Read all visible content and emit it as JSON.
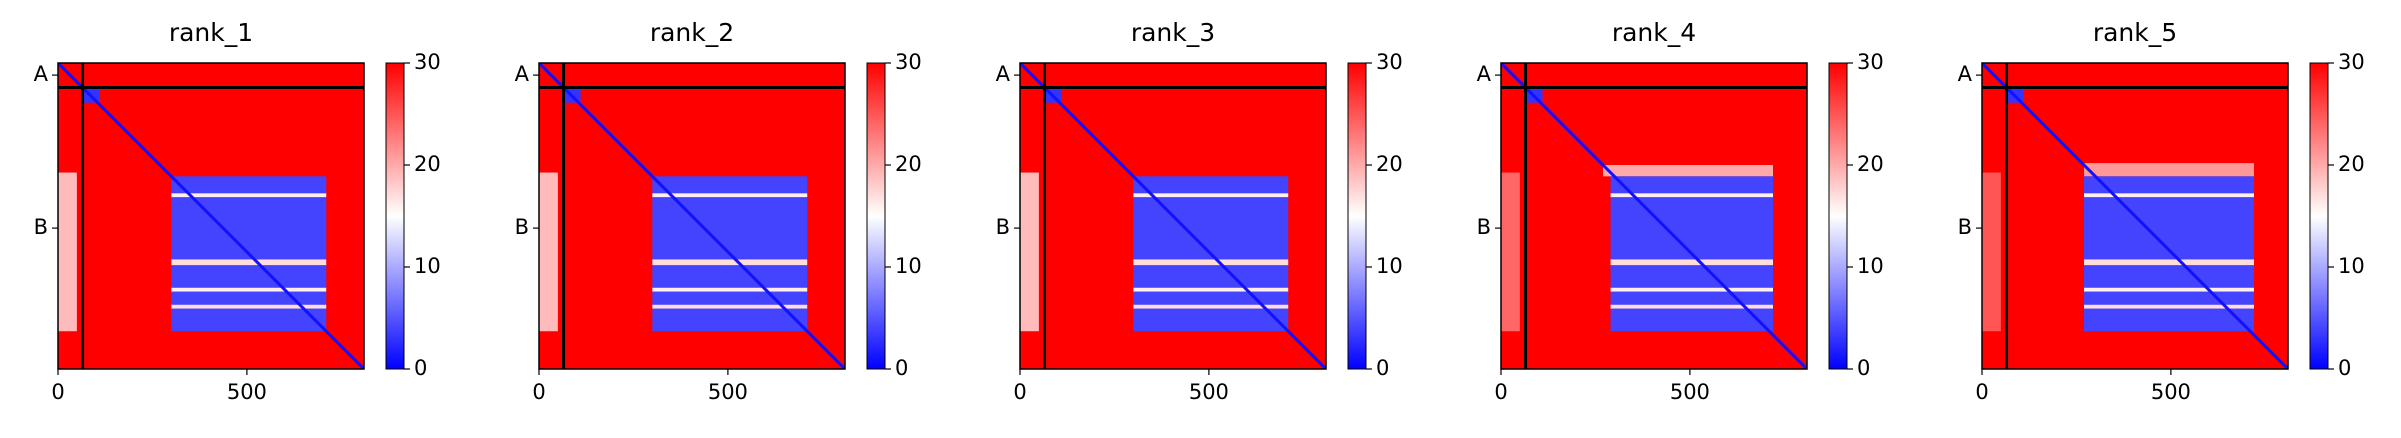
{
  "chart_data": [
    {
      "type": "heatmap",
      "title": "rank_1",
      "xlim": [
        0,
        810
      ],
      "ylim": [
        810,
        0
      ],
      "xticks": [
        0,
        500
      ],
      "yticks": [
        {
          "value": 32,
          "label": "A"
        },
        {
          "value": 437,
          "label": "B"
        }
      ],
      "clim": [
        0,
        30
      ],
      "cticks": [
        0,
        10,
        20,
        30
      ],
      "background": 30,
      "diagonal": 1,
      "chain_boundaries": [
        65
      ],
      "blocks": [
        {
          "x": [
            0,
            50
          ],
          "y": [
            290,
            710
          ],
          "value": 19
        },
        {
          "x": [
            65,
            110
          ],
          "y": [
            65,
            105
          ],
          "value": 3
        },
        {
          "x": [
            300,
            710
          ],
          "y": [
            300,
            710
          ],
          "value": 4
        },
        {
          "x": [
            300,
            710
          ],
          "y": [
            345,
            355
          ],
          "value": 16
        },
        {
          "x": [
            300,
            710
          ],
          "y": [
            520,
            535
          ],
          "value": 17
        },
        {
          "x": [
            300,
            710
          ],
          "y": [
            595,
            605
          ],
          "value": 16
        },
        {
          "x": [
            300,
            710
          ],
          "y": [
            640,
            650
          ],
          "value": 17
        }
      ]
    },
    {
      "type": "heatmap",
      "title": "rank_2",
      "xlim": [
        0,
        810
      ],
      "ylim": [
        810,
        0
      ],
      "xticks": [
        0,
        500
      ],
      "yticks": [
        {
          "value": 32,
          "label": "A"
        },
        {
          "value": 437,
          "label": "B"
        }
      ],
      "clim": [
        0,
        30
      ],
      "cticks": [
        0,
        10,
        20,
        30
      ],
      "background": 30,
      "diagonal": 1,
      "chain_boundaries": [
        65
      ],
      "blocks": [
        {
          "x": [
            0,
            50
          ],
          "y": [
            290,
            710
          ],
          "value": 19
        },
        {
          "x": [
            65,
            110
          ],
          "y": [
            65,
            105
          ],
          "value": 3
        },
        {
          "x": [
            300,
            710
          ],
          "y": [
            300,
            710
          ],
          "value": 4
        },
        {
          "x": [
            300,
            710
          ],
          "y": [
            345,
            355
          ],
          "value": 16
        },
        {
          "x": [
            300,
            710
          ],
          "y": [
            520,
            535
          ],
          "value": 17
        },
        {
          "x": [
            300,
            710
          ],
          "y": [
            595,
            605
          ],
          "value": 16
        },
        {
          "x": [
            300,
            710
          ],
          "y": [
            640,
            650
          ],
          "value": 17
        }
      ]
    },
    {
      "type": "heatmap",
      "title": "rank_3",
      "xlim": [
        0,
        810
      ],
      "ylim": [
        810,
        0
      ],
      "xticks": [
        0,
        500
      ],
      "yticks": [
        {
          "value": 32,
          "label": "A"
        },
        {
          "value": 437,
          "label": "B"
        }
      ],
      "clim": [
        0,
        30
      ],
      "cticks": [
        0,
        10,
        20,
        30
      ],
      "background": 30,
      "diagonal": 1,
      "chain_boundaries": [
        65
      ],
      "blocks": [
        {
          "x": [
            0,
            50
          ],
          "y": [
            290,
            710
          ],
          "value": 19
        },
        {
          "x": [
            65,
            110
          ],
          "y": [
            65,
            105
          ],
          "value": 3
        },
        {
          "x": [
            300,
            710
          ],
          "y": [
            300,
            710
          ],
          "value": 4
        },
        {
          "x": [
            300,
            710
          ],
          "y": [
            345,
            355
          ],
          "value": 16
        },
        {
          "x": [
            300,
            710
          ],
          "y": [
            520,
            535
          ],
          "value": 17
        },
        {
          "x": [
            300,
            710
          ],
          "y": [
            595,
            605
          ],
          "value": 16
        },
        {
          "x": [
            300,
            710
          ],
          "y": [
            640,
            650
          ],
          "value": 17
        }
      ]
    },
    {
      "type": "heatmap",
      "title": "rank_4",
      "xlim": [
        0,
        810
      ],
      "ylim": [
        810,
        0
      ],
      "xticks": [
        0,
        500
      ],
      "yticks": [
        {
          "value": 32,
          "label": "A"
        },
        {
          "value": 437,
          "label": "B"
        }
      ],
      "clim": [
        0,
        30
      ],
      "cticks": [
        0,
        10,
        20,
        30
      ],
      "background": 30,
      "diagonal": 1,
      "chain_boundaries": [
        65
      ],
      "blocks": [
        {
          "x": [
            0,
            50
          ],
          "y": [
            290,
            710
          ],
          "value": 24
        },
        {
          "x": [
            65,
            110
          ],
          "y": [
            65,
            105
          ],
          "value": 3
        },
        {
          "x": [
            270,
            720
          ],
          "y": [
            270,
            300
          ],
          "value": 20
        },
        {
          "x": [
            290,
            720
          ],
          "y": [
            300,
            710
          ],
          "value": 4
        },
        {
          "x": [
            290,
            720
          ],
          "y": [
            345,
            355
          ],
          "value": 16
        },
        {
          "x": [
            290,
            720
          ],
          "y": [
            520,
            535
          ],
          "value": 17
        },
        {
          "x": [
            290,
            720
          ],
          "y": [
            595,
            605
          ],
          "value": 16
        },
        {
          "x": [
            290,
            720
          ],
          "y": [
            640,
            650
          ],
          "value": 17
        }
      ]
    },
    {
      "type": "heatmap",
      "title": "rank_5",
      "xlim": [
        0,
        810
      ],
      "ylim": [
        810,
        0
      ],
      "xticks": [
        0,
        500
      ],
      "yticks": [
        {
          "value": 32,
          "label": "A"
        },
        {
          "value": 437,
          "label": "B"
        }
      ],
      "clim": [
        0,
        30
      ],
      "cticks": [
        0,
        10,
        20,
        30
      ],
      "background": 30,
      "diagonal": 1,
      "chain_boundaries": [
        65
      ],
      "blocks": [
        {
          "x": [
            0,
            50
          ],
          "y": [
            290,
            710
          ],
          "value": 25
        },
        {
          "x": [
            65,
            110
          ],
          "y": [
            65,
            105
          ],
          "value": 3
        },
        {
          "x": [
            270,
            720
          ],
          "y": [
            265,
            300
          ],
          "value": 21
        },
        {
          "x": [
            270,
            720
          ],
          "y": [
            300,
            710
          ],
          "value": 4
        },
        {
          "x": [
            270,
            720
          ],
          "y": [
            345,
            355
          ],
          "value": 16
        },
        {
          "x": [
            270,
            720
          ],
          "y": [
            520,
            535
          ],
          "value": 17
        },
        {
          "x": [
            270,
            720
          ],
          "y": [
            595,
            605
          ],
          "value": 16
        },
        {
          "x": [
            270,
            720
          ],
          "y": [
            640,
            650
          ],
          "value": 17
        }
      ]
    }
  ]
}
